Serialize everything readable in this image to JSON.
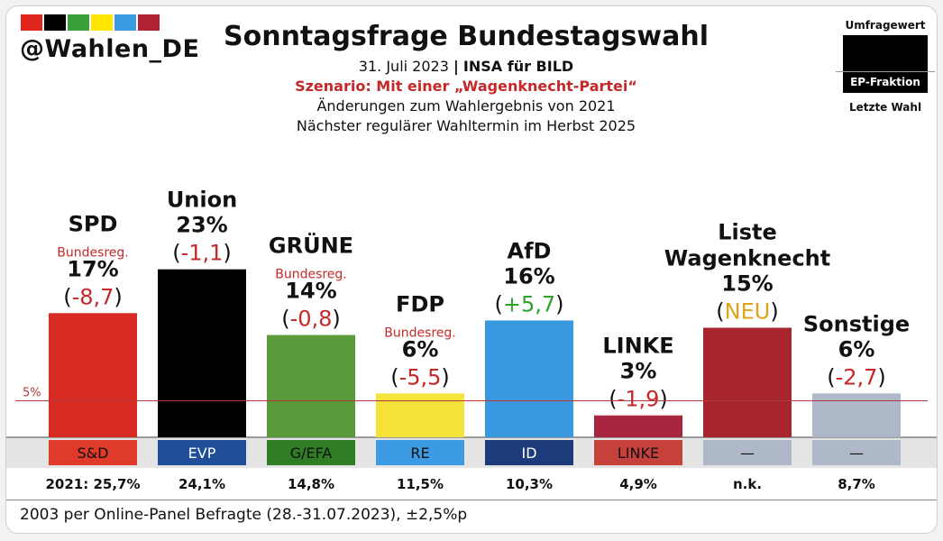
{
  "handle": "@Wahlen_DE",
  "logo_colors": [
    "#e0261c",
    "#000000",
    "#3aa03a",
    "#ffe500",
    "#3b9be0",
    "#b22235"
  ],
  "header": {
    "title": "Sonntagsfrage Bundestagswahl",
    "date": "31. Juli 2023",
    "separator": "|",
    "pollster": "INSA für BILD",
    "scenario": "Szenario: Mit einer „Wagenknecht-Partei“",
    "changes": "Änderungen zum Wahlergebnis von 2021",
    "next_election": "Nächster regulärer Wahltermin im Herbst 2025"
  },
  "legend": {
    "poll_value": "Umfragewert",
    "ep_fraction": "EP-Fraktion",
    "last_election": "Letzte Wahl"
  },
  "footnote": "2003 per Online-Panel Befragte (28.-31.07.2023), ±2,5%p",
  "chart_data": {
    "type": "bar",
    "title": "Sonntagsfrage Bundestagswahl",
    "unit": "%",
    "ylim": [
      0,
      25
    ],
    "threshold": {
      "value": 5,
      "label": "5%"
    },
    "categories": [
      "SPD",
      "Union",
      "GRÜNE",
      "FDP",
      "AfD",
      "LINKE",
      "Liste Wagenknecht",
      "Sonstige"
    ],
    "bars": [
      {
        "party_lines": [
          "SPD"
        ],
        "note": "Bundesreg.",
        "value": 17,
        "value_label": "17%",
        "change": "(-8,7)",
        "change_core": "-8,7",
        "change_color": "#c62828",
        "color": "#d72b23",
        "ep_group": "S&D",
        "ep_color": "#e03a2a",
        "previous": "2021: 25,7%"
      },
      {
        "party_lines": [
          "Union"
        ],
        "note": "",
        "value": 23,
        "value_label": "23%",
        "change": "(-1,1)",
        "change_core": "-1,1",
        "change_color": "#c62828",
        "color": "#000000",
        "ep_group": "EVP",
        "ep_color": "#1f4e9b",
        "previous": "24,1%"
      },
      {
        "party_lines": [
          "GRÜNE"
        ],
        "note": "Bundesreg.",
        "value": 14,
        "value_label": "14%",
        "change": "(-0,8)",
        "change_core": "-0,8",
        "change_color": "#c62828",
        "color": "#5a9a3a",
        "ep_group": "G/EFA",
        "ep_color": "#2f7d25",
        "previous": "14,8%"
      },
      {
        "party_lines": [
          "FDP"
        ],
        "note": "Bundesreg.",
        "value": 6,
        "value_label": "6%",
        "change": "(-5,5)",
        "change_core": "-5,5",
        "change_color": "#c62828",
        "color": "#f6e33a",
        "ep_group": "RE",
        "ep_color": "#3c9be2",
        "previous": "11,5%"
      },
      {
        "party_lines": [
          "AfD"
        ],
        "note": "",
        "value": 16,
        "value_label": "16%",
        "change": "(+5,7)",
        "change_core": "+5,7",
        "change_color": "#2ea12e",
        "color": "#3a98de",
        "ep_group": "ID",
        "ep_color": "#1d3b7a",
        "previous": "10,3%"
      },
      {
        "party_lines": [
          "LINKE"
        ],
        "note": "",
        "value": 3,
        "value_label": "3%",
        "change": "(-1,9)",
        "change_core": "-1,9",
        "change_color": "#c62828",
        "color": "#a8263f",
        "ep_group": "LINKE",
        "ep_color": "#c6403c",
        "previous": "4,9%"
      },
      {
        "party_lines": [
          "Liste",
          "Wagenknecht"
        ],
        "note": "",
        "value": 15,
        "value_label": "15%",
        "change": "(NEU)",
        "change_core": "NEU",
        "change_color": "#e0a21c",
        "color": "#a7262d",
        "ep_group": "—",
        "ep_color": "#aeb8c8",
        "previous": "n.k."
      },
      {
        "party_lines": [
          "Sonstige"
        ],
        "note": "",
        "value": 6,
        "value_label": "6%",
        "change": "(-2,7)",
        "change_core": "-2,7",
        "change_color": "#c62828",
        "color": "#aeb8c8",
        "ep_group": "—",
        "ep_color": "#aeb8c8",
        "previous": "8,7%"
      }
    ]
  }
}
